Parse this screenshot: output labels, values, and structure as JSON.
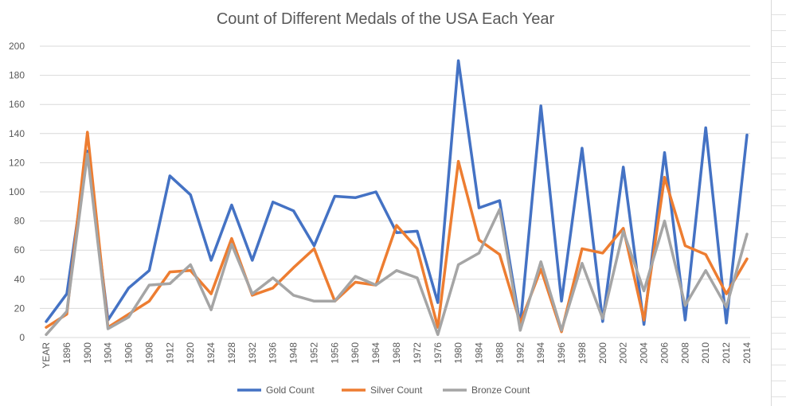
{
  "chart_data": {
    "type": "line",
    "title": "Count of Different Medals of the USA Each Year",
    "xlabel": "",
    "ylabel": "",
    "ylim": [
      0,
      200
    ],
    "yticks": [
      0,
      20,
      40,
      60,
      80,
      100,
      120,
      140,
      160,
      180,
      200
    ],
    "grid": true,
    "legend": "bottom",
    "categories": [
      "YEAR",
      "1896",
      "1900",
      "1904",
      "1906",
      "1908",
      "1912",
      "1920",
      "1924",
      "1928",
      "1932",
      "1936",
      "1948",
      "1952",
      "1956",
      "1960",
      "1964",
      "1968",
      "1972",
      "1976",
      "1980",
      "1984",
      "1988",
      "1992",
      "1994",
      "1996",
      "1998",
      "2000",
      "2002",
      "2004",
      "2006",
      "2008",
      "2010",
      "2012",
      "2014"
    ],
    "series": [
      {
        "name": "Gold Count",
        "color": "#4472c4",
        "values": [
          11,
          30,
          128,
          12,
          34,
          46,
          111,
          98,
          53,
          91,
          53,
          93,
          87,
          63,
          97,
          96,
          100,
          72,
          73,
          24,
          190,
          89,
          94,
          8,
          159,
          25,
          130,
          11,
          117,
          9,
          127,
          12,
          144,
          10,
          139
        ]
      },
      {
        "name": "Silver Count",
        "color": "#ed7d31",
        "values": [
          7,
          16,
          141,
          7,
          16,
          25,
          45,
          46,
          30,
          68,
          29,
          34,
          48,
          61,
          25,
          38,
          36,
          77,
          61,
          7,
          121,
          67,
          57,
          10,
          47,
          4,
          61,
          58,
          75,
          12,
          110,
          63,
          57,
          30,
          54
        ]
      },
      {
        "name": "Bronze Count",
        "color": "#a5a5a5",
        "values": [
          2,
          18,
          126,
          6,
          14,
          36,
          37,
          50,
          19,
          64,
          30,
          41,
          29,
          25,
          25,
          42,
          36,
          46,
          41,
          2,
          50,
          58,
          88,
          5,
          52,
          5,
          51,
          13,
          73,
          32,
          80,
          22,
          46,
          21,
          71
        ]
      }
    ]
  }
}
